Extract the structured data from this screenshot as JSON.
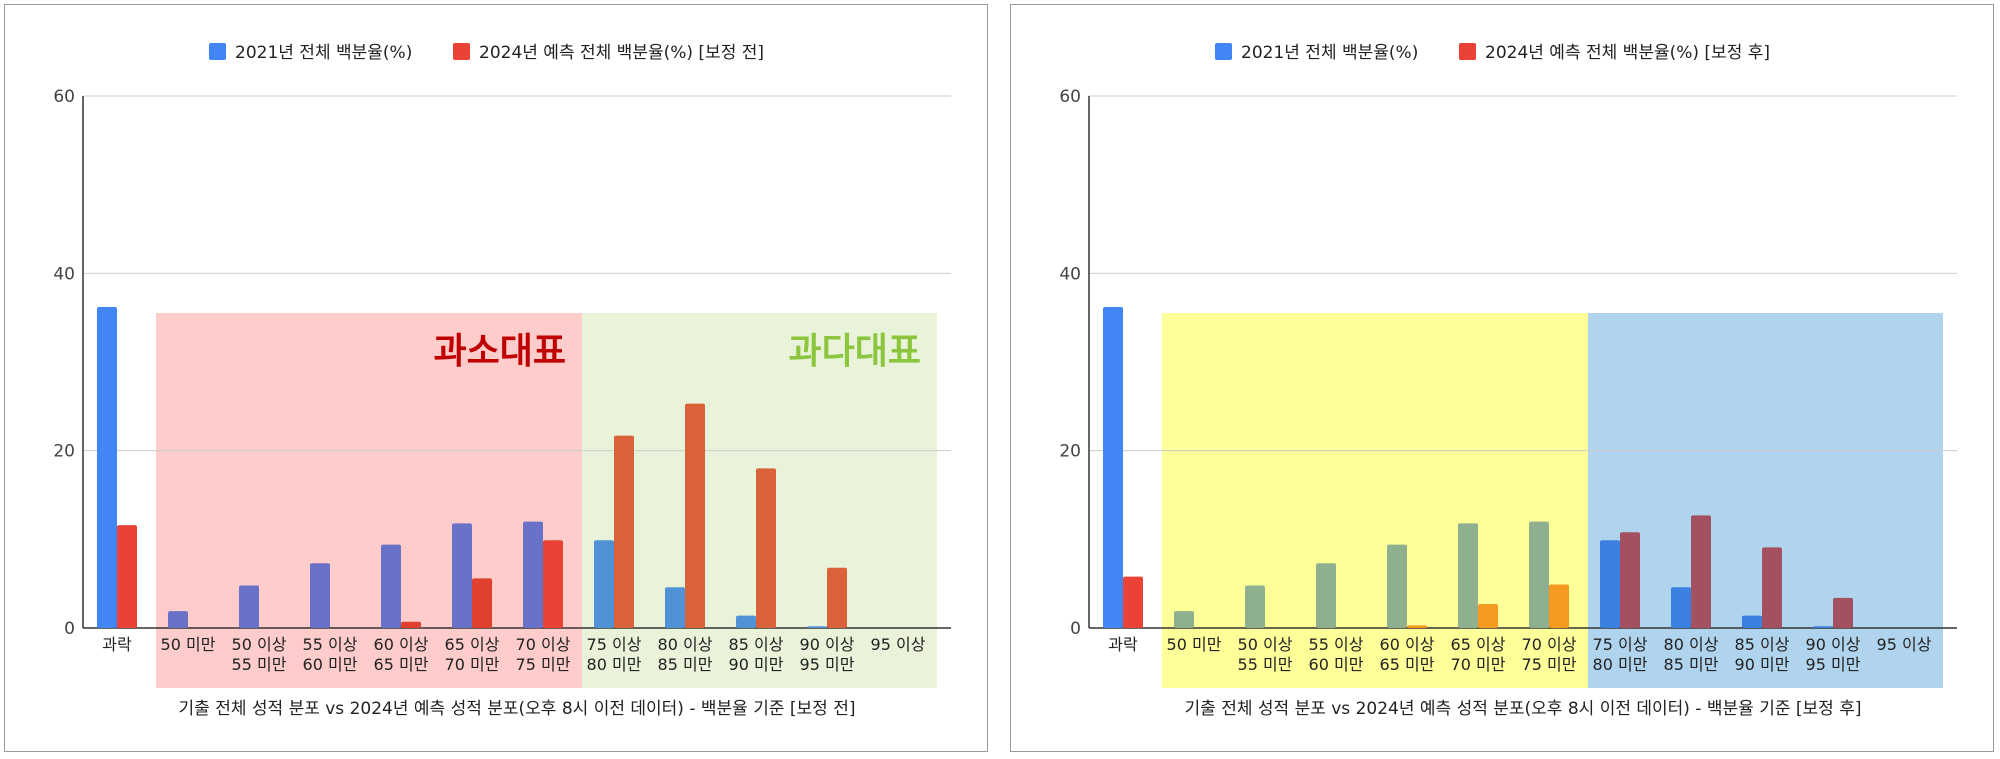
{
  "chart_data": [
    {
      "type": "bar",
      "legend": [
        {
          "label": "2021년 전체 백분율(%)",
          "color": "#4285f4"
        },
        {
          "label": "2024년 예측 전체 백분율(%) [보정 전]",
          "color": "#ea4335"
        }
      ],
      "xlabel": "기출 전체 성적 분포 vs 2024년 예측 성적 분포(오후 8시 이전 데이터) - 백분율 기준 [보정 전]",
      "ylim": [
        0,
        60
      ],
      "yticks": [
        0,
        20,
        40,
        60
      ],
      "grid": true,
      "legend_position": "top-center",
      "categories": [
        [
          "과락"
        ],
        [
          "50 미만"
        ],
        [
          "50 이상",
          "55 미만"
        ],
        [
          "55 이상",
          "60 미만"
        ],
        [
          "60 이상",
          "65 미만"
        ],
        [
          "65 이상",
          "70 미만"
        ],
        [
          "70 이상",
          "75 미만"
        ],
        [
          "75 이상",
          "80 미만"
        ],
        [
          "80 이상",
          "85 미만"
        ],
        [
          "85 이상",
          "90 미만"
        ],
        [
          "90 이상",
          "95 미만"
        ],
        [
          "95 이상"
        ]
      ],
      "series": [
        {
          "name": "2021년 전체 백분율(%)",
          "values": [
            36.2,
            1.9,
            4.8,
            7.3,
            9.4,
            11.8,
            12.0,
            9.9,
            4.6,
            1.4,
            0.2,
            0
          ],
          "colors": [
            "#4285f4",
            "#6a72c8",
            "#6a72c8",
            "#6a72c8",
            "#6a72c8",
            "#6a72c8",
            "#6a72c8",
            "#4f93d6",
            "#4f93d6",
            "#4f93d6",
            "#4f93d6",
            "#4f93d6"
          ]
        },
        {
          "name": "2024년 예측 전체 백분율(%) [보정 전]",
          "values": [
            11.6,
            0,
            0,
            0,
            0.7,
            5.6,
            9.9,
            21.7,
            25.3,
            18.0,
            6.8,
            0
          ],
          "colors": [
            "#ea4335",
            "#ea4335",
            "#ea4335",
            "#ea4335",
            "#e0412f",
            "#e0412f",
            "#ea4335",
            "#d9623a",
            "#d9623a",
            "#d9623a",
            "#d9623a",
            "#d9623a"
          ]
        }
      ],
      "regions": [
        {
          "label": "과소대표",
          "from_category": 1,
          "to_category": 6,
          "fill": "#ffcccc",
          "label_color": "#c00000",
          "label_align": "right"
        },
        {
          "label": "과다대표",
          "from_category": 7,
          "to_category": 11,
          "fill": "#e8f3da",
          "label_color": "#8cc63f",
          "label_align": "right"
        }
      ]
    },
    {
      "type": "bar",
      "legend": [
        {
          "label": "2021년 전체 백분율(%)",
          "color": "#4285f4"
        },
        {
          "label": "2024년 예측 전체 백분율(%) [보정 후]",
          "color": "#ea4335"
        }
      ],
      "xlabel": "기출 전체 성적 분포 vs 2024년 예측 성적 분포(오후 8시 이전 데이터) - 백분율 기준 [보정 후]",
      "ylim": [
        0,
        60
      ],
      "yticks": [
        0,
        20,
        40,
        60
      ],
      "grid": true,
      "legend_position": "top-center",
      "categories": [
        [
          "과락"
        ],
        [
          "50 미만"
        ],
        [
          "50 이상",
          "55 미만"
        ],
        [
          "55 이상",
          "60 미만"
        ],
        [
          "60 이상",
          "65 미만"
        ],
        [
          "65 이상",
          "70 미만"
        ],
        [
          "70 이상",
          "75 미만"
        ],
        [
          "75 이상",
          "80 미만"
        ],
        [
          "80 이상",
          "85 미만"
        ],
        [
          "85 이상",
          "90 미만"
        ],
        [
          "90 이상",
          "95 미만"
        ],
        [
          "95 이상"
        ]
      ],
      "series": [
        {
          "name": "2021년 전체 백분율(%)",
          "values": [
            36.2,
            1.9,
            4.8,
            7.3,
            9.4,
            11.8,
            12.0,
            9.9,
            4.6,
            1.4,
            0.2,
            0
          ],
          "colors": [
            "#4285f4",
            "#8fb08e",
            "#8fb08e",
            "#8fb08e",
            "#8fb08e",
            "#8fb08e",
            "#8fb08e",
            "#3b80e0",
            "#3b80e0",
            "#3b80e0",
            "#3b80e0",
            "#3b80e0"
          ]
        },
        {
          "name": "2024년 예측 전체 백분율(%) [보정 후]",
          "values": [
            5.8,
            0,
            0,
            0,
            0.3,
            2.7,
            4.9,
            10.8,
            12.7,
            9.1,
            3.4,
            0
          ],
          "colors": [
            "#ea4335",
            "#f49a1e",
            "#f49a1e",
            "#f49a1e",
            "#f49a1e",
            "#f49a1e",
            "#f49a1e",
            "#a35060",
            "#a35060",
            "#a35060",
            "#a35060",
            "#a35060"
          ]
        }
      ],
      "regions": [
        {
          "label": "",
          "from_category": 1,
          "to_category": 6,
          "fill": "#ffff99"
        },
        {
          "label": "",
          "from_category": 7,
          "to_category": 11,
          "fill": "#b1d4ee"
        }
      ]
    }
  ]
}
